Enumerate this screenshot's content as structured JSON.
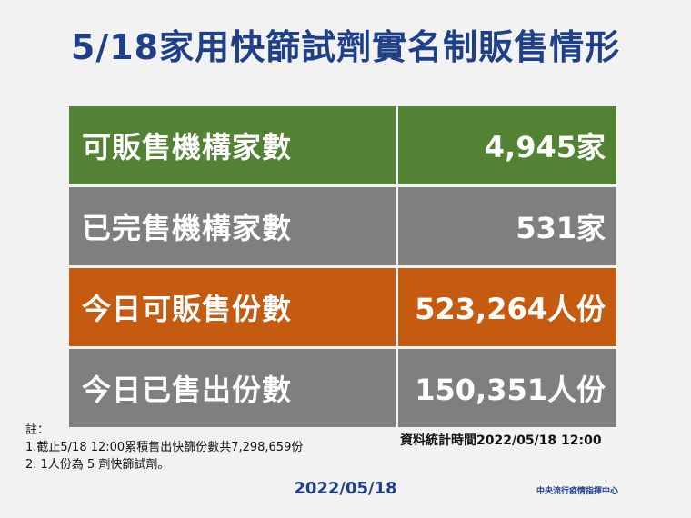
{
  "title": "5/18家用快篩試劑實名制販售情形",
  "rows": [
    {
      "label": "可販售機構家數",
      "value": "4,945家",
      "color": "#548235"
    },
    {
      "label": "已完售機構家數",
      "value": "531家",
      "color": "#7f7f7f"
    },
    {
      "label": "今日可販售份數",
      "value": "523,264人份",
      "color": "#c55a11"
    },
    {
      "label": "今日已售出份數",
      "value": "150,351人份",
      "color": "#7f7f7f"
    }
  ],
  "notes": {
    "heading": "註：",
    "line1": "1.截止5/18 12:00累積售出快篩份數共7,298,659份",
    "line2": "2. 1人份為 5 劑快篩試劑。"
  },
  "stat_time": "資料統計時間2022/05/18  12:00",
  "date": "2022/05/18",
  "organization": "中央流行疫情指揮中心",
  "colors": {
    "title": "#1f3f86",
    "background": "#f2f2f2"
  }
}
